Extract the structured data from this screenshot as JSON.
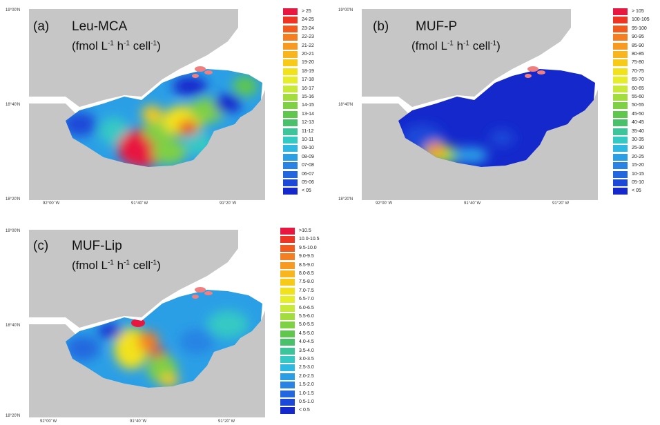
{
  "panels": [
    {
      "id": "a",
      "letter": "(a)",
      "name": "Leu-MCA",
      "unit": {
        "open": "(fmol L",
        "e1": "-1",
        "mid1": " h",
        "e2": "-1",
        "mid2": " cell",
        "e3": "-1",
        "close": ")"
      },
      "lat_top": "19°00'N",
      "lat_mid": "18°40'N",
      "lat_bottom": "18°20'N",
      "lon_labels": [
        "92°00' W",
        "91°40' W",
        "91°20' W"
      ],
      "legend": [
        {
          "label": "> 25",
          "color": "#e8173f"
        },
        {
          "label": "24-25",
          "color": "#ee3524"
        },
        {
          "label": "23-24",
          "color": "#f25a1e"
        },
        {
          "label": "22-23",
          "color": "#f57e20"
        },
        {
          "label": "21-22",
          "color": "#f79a22"
        },
        {
          "label": "20-21",
          "color": "#f8b51e"
        },
        {
          "label": "19-20",
          "color": "#f7ca17"
        },
        {
          "label": "18-19",
          "color": "#f2e21a"
        },
        {
          "label": "17-18",
          "color": "#e6ee2a"
        },
        {
          "label": "16-17",
          "color": "#c8e83a"
        },
        {
          "label": "15-16",
          "color": "#a2dc3e"
        },
        {
          "label": "14-15",
          "color": "#7fd044"
        },
        {
          "label": "13-14",
          "color": "#5fc84c"
        },
        {
          "label": "12-13",
          "color": "#49c06a"
        },
        {
          "label": "11-12",
          "color": "#3dc49a"
        },
        {
          "label": "10-11",
          "color": "#35c9c4"
        },
        {
          "label": "09-10",
          "color": "#2fb9e2"
        },
        {
          "label": "08-09",
          "color": "#2b9fe6"
        },
        {
          "label": "07-08",
          "color": "#2883e4"
        },
        {
          "label": "06-07",
          "color": "#2367df"
        },
        {
          "label": "05-06",
          "color": "#1c48d8"
        },
        {
          "label": "< 05",
          "color": "#1428cc"
        }
      ]
    },
    {
      "id": "b",
      "letter": "(b)",
      "name": "MUF-P",
      "unit": {
        "open": "(fmol L",
        "e1": "-1",
        "mid1": " h",
        "e2": "-1",
        "mid2": " cell",
        "e3": "-1",
        "close": ")"
      },
      "lat_top": "19°00'N",
      "lat_mid": "18°40'N",
      "lat_bottom": "18°20'N",
      "lon_labels": [
        "92°00' W",
        "91°40' W",
        "91°20' W"
      ],
      "legend": [
        {
          "label": "> 105",
          "color": "#e8173f"
        },
        {
          "label": "100-105",
          "color": "#ee3524"
        },
        {
          "label": "95-100",
          "color": "#f25a1e"
        },
        {
          "label": "90-95",
          "color": "#f57e20"
        },
        {
          "label": "85-90",
          "color": "#f79a22"
        },
        {
          "label": "80-85",
          "color": "#f8b51e"
        },
        {
          "label": "75-80",
          "color": "#f7ca17"
        },
        {
          "label": "70-75",
          "color": "#f2e21a"
        },
        {
          "label": "65-70",
          "color": "#e6ee2a"
        },
        {
          "label": "60-65",
          "color": "#c8e83a"
        },
        {
          "label": "55-60",
          "color": "#a2dc3e"
        },
        {
          "label": "50-55",
          "color": "#7fd044"
        },
        {
          "label": "45-50",
          "color": "#5fc84c"
        },
        {
          "label": "40-45",
          "color": "#49c06a"
        },
        {
          "label": "35-40",
          "color": "#3dc49a"
        },
        {
          "label": "30-35",
          "color": "#35c9c4"
        },
        {
          "label": "25-30",
          "color": "#2fb9e2"
        },
        {
          "label": "20-25",
          "color": "#2b9fe6"
        },
        {
          "label": "15-20",
          "color": "#2883e4"
        },
        {
          "label": "10-15",
          "color": "#2367df"
        },
        {
          "label": "05-10",
          "color": "#1c48d8"
        },
        {
          "label": "< 05",
          "color": "#1428cc"
        }
      ]
    },
    {
      "id": "c",
      "letter": "(c)",
      "name": "MUF-Lip",
      "unit": {
        "open": "(fmol L",
        "e1": "-1",
        "mid1": " h",
        "e2": "-1",
        "mid2": " cell",
        "e3": "-1",
        "close": ")"
      },
      "lat_top": "19°00'N",
      "lat_mid": "18°40'N",
      "lat_bottom": "18°20'N",
      "lon_labels": [
        "92°00' W",
        "91°40' W",
        "91°20' W"
      ],
      "legend": [
        {
          "label": ">10.5",
          "color": "#e8173f"
        },
        {
          "label": "10.0-10.5",
          "color": "#ee3524"
        },
        {
          "label": "9.5-10.0",
          "color": "#f25a1e"
        },
        {
          "label": "9.0-9.5",
          "color": "#f57e20"
        },
        {
          "label": "8.5-9.0",
          "color": "#f79a22"
        },
        {
          "label": "8.0-8.5",
          "color": "#f8b51e"
        },
        {
          "label": "7.5-8.0",
          "color": "#f7ca17"
        },
        {
          "label": "7.0-7.5",
          "color": "#f2e21a"
        },
        {
          "label": "6.5-7.0",
          "color": "#e6ee2a"
        },
        {
          "label": "6.0-6.5",
          "color": "#c8e83a"
        },
        {
          "label": "5.5-6.0",
          "color": "#a2dc3e"
        },
        {
          "label": "5.0-5.5",
          "color": "#7fd044"
        },
        {
          "label": "4.5-5.0",
          "color": "#5fc84c"
        },
        {
          "label": "4.0-4.5",
          "color": "#49c06a"
        },
        {
          "label": "3.5-4.0",
          "color": "#3dc49a"
        },
        {
          "label": "3.0-3.5",
          "color": "#35c9c4"
        },
        {
          "label": "2.5-3.0",
          "color": "#2fb9e2"
        },
        {
          "label": "2.0-2.5",
          "color": "#2b9fe6"
        },
        {
          "label": "1.5-2.0",
          "color": "#2883e4"
        },
        {
          "label": "1.0-1.5",
          "color": "#2367df"
        },
        {
          "label": "0.5-1.0",
          "color": "#1c48d8"
        },
        {
          "label": "< 0.5",
          "color": "#1428cc"
        }
      ]
    }
  ],
  "colors": {
    "land": "#c6c6c6",
    "water_bg": "#ffffff",
    "low": "#1428cc",
    "mid_blue": "#2b9fe6",
    "cyan": "#35c9c4",
    "green": "#7fd044",
    "yellow": "#f2e21a",
    "orange": "#f57e20",
    "red": "#e8173f",
    "islands": "#f08080"
  }
}
